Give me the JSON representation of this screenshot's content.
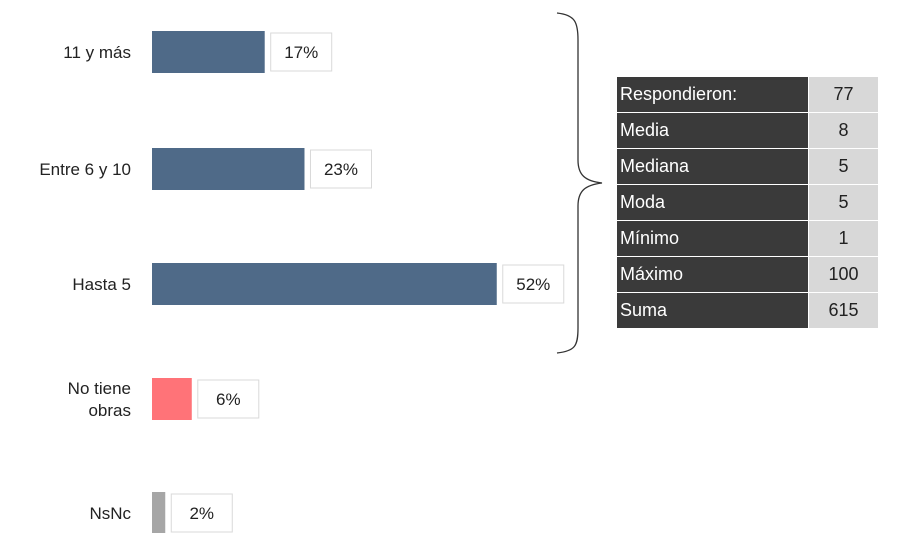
{
  "chart_data": {
    "type": "bar",
    "orientation": "horizontal",
    "categories": [
      "11 y más",
      "Entre 6 y 10",
      "Hasta 5",
      "No tiene obras",
      "NsNc"
    ],
    "values": [
      17,
      23,
      52,
      6,
      2
    ],
    "value_labels": [
      "17%",
      "23%",
      "52%",
      "6%",
      "2%"
    ],
    "unit": "%",
    "colors": [
      "#4f6a88",
      "#4f6a88",
      "#4f6a88",
      "#ff7378",
      "#a6a6a6"
    ],
    "bracket_groups": [
      "11 y más",
      "Entre 6 y 10",
      "Hasta 5"
    ],
    "grid": false,
    "legend": "none"
  },
  "stats_table": {
    "rows": [
      {
        "label": "Respondieron:",
        "value": "77"
      },
      {
        "label": "Media",
        "value": "8"
      },
      {
        "label": "Mediana",
        "value": "5"
      },
      {
        "label": "Moda",
        "value": "5"
      },
      {
        "label": "Mínimo",
        "value": "1"
      },
      {
        "label": "Máximo",
        "value": "100"
      },
      {
        "label": "Suma",
        "value": "615"
      }
    ]
  }
}
